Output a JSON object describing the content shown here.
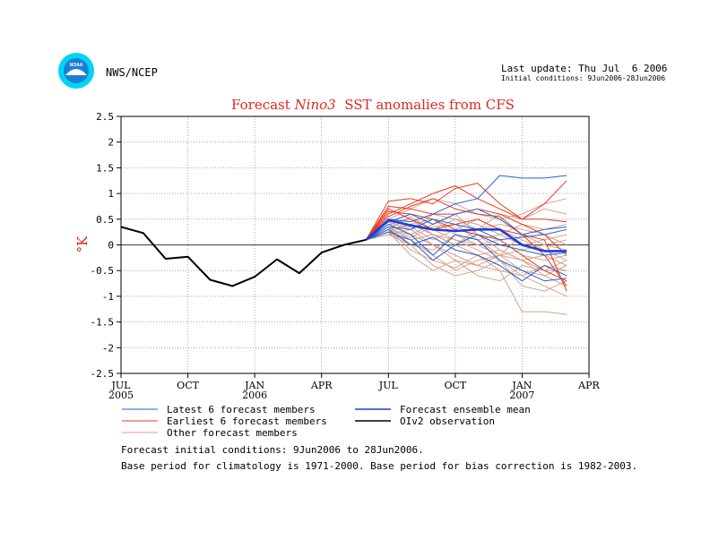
{
  "header": {
    "org": "NWS/NCEP",
    "logo_text": "NOAA",
    "last_update": "Last update: Thu Jul  6 2006",
    "initial_conditions": "Initial conditions: 9Jun2006-28Jun2006"
  },
  "footer": {
    "line1": "Forecast initial conditions: 9Jun2006 to 28Jun2006.",
    "line2": "Base period for climatology is 1971-2000. Base period for bias correction is 1982-2003."
  },
  "colors": {
    "latest": "#1f5fd8",
    "earliest": "#e8391c",
    "other": "#d9a08a",
    "mean": "#1a3fe0",
    "obs": "#000000",
    "title": "#e0281c",
    "logo": "#1a7fd6"
  },
  "chart_data": {
    "type": "line",
    "title": "Forecast Nino3  SST anomalies from CFS",
    "title_parts": [
      "Forecast ",
      "Nino3",
      "  SST anomalies from CFS"
    ],
    "ylabel": "°K",
    "ylim": [
      -2.5,
      2.5
    ],
    "yticks": [
      2.5,
      2,
      1.5,
      1,
      0.5,
      0,
      -0.5,
      -1,
      -1.5,
      -2,
      -2.5
    ],
    "ytick_labels": [
      "2.5",
      "2",
      "1.5",
      "1",
      "0.5",
      "0",
      "-0.5",
      "-1",
      "-1.5",
      "-2",
      "-2.5"
    ],
    "xlim": [
      "2005-07",
      "2007-04"
    ],
    "xticks": [
      {
        "date": "2005-07",
        "label": "JUL",
        "year": "2005"
      },
      {
        "date": "2005-10",
        "label": "OCT",
        "year": ""
      },
      {
        "date": "2006-01",
        "label": "JAN",
        "year": "2006"
      },
      {
        "date": "2006-04",
        "label": "APR",
        "year": ""
      },
      {
        "date": "2006-07",
        "label": "JUL",
        "year": ""
      },
      {
        "date": "2006-10",
        "label": "OCT",
        "year": ""
      },
      {
        "date": "2007-01",
        "label": "JAN",
        "year": "2007"
      },
      {
        "date": "2007-04",
        "label": "APR",
        "year": ""
      }
    ],
    "grid": true,
    "legend": [
      {
        "label": "Latest 6 forecast members",
        "key": "latest"
      },
      {
        "label": "Forecast ensemble mean",
        "key": "mean"
      },
      {
        "label": "Earliest 6 forecast members",
        "key": "earliest"
      },
      {
        "label": "OIv2 observation",
        "key": "obs"
      },
      {
        "label": "Other forecast members",
        "key": "other"
      }
    ],
    "observation": {
      "x": [
        "2005-07",
        "2005-08",
        "2005-09",
        "2005-10",
        "2005-11",
        "2005-12",
        "2006-01",
        "2006-02",
        "2006-03",
        "2006-04",
        "2006-05",
        "2006-06"
      ],
      "y": [
        0.35,
        0.23,
        -0.27,
        -0.23,
        -0.68,
        -0.8,
        -0.62,
        -0.28,
        -0.55,
        -0.15,
        0.0,
        0.1
      ]
    },
    "forecast_x": [
      "2006-06",
      "2006-07",
      "2006-08",
      "2006-09",
      "2006-10",
      "2006-11",
      "2006-12",
      "2007-01",
      "2007-02",
      "2007-03"
    ],
    "ensemble_mean": [
      0.1,
      0.48,
      0.38,
      0.3,
      0.27,
      0.3,
      0.3,
      0.0,
      -0.12,
      -0.12
    ],
    "latest_members": [
      [
        0.1,
        0.5,
        0.45,
        0.6,
        0.8,
        0.9,
        1.35,
        1.3,
        1.3,
        1.35
      ],
      [
        0.1,
        0.4,
        0.2,
        -0.2,
        0.2,
        0.1,
        -0.3,
        -0.5,
        -0.7,
        -0.65
      ],
      [
        0.1,
        0.35,
        0.3,
        0.5,
        0.4,
        0.3,
        0.1,
        0.15,
        0.2,
        0.3
      ],
      [
        0.1,
        0.3,
        0.0,
        0.15,
        -0.1,
        -0.2,
        -0.4,
        -0.7,
        -0.4,
        -0.6
      ],
      [
        0.1,
        0.45,
        0.6,
        0.4,
        0.6,
        0.7,
        0.5,
        0.2,
        0.3,
        0.35
      ],
      [
        0.1,
        0.25,
        0.1,
        -0.3,
        0.0,
        0.2,
        0.0,
        -0.1,
        -0.2,
        -0.15
      ]
    ],
    "earliest_members": [
      [
        0.1,
        0.85,
        0.9,
        0.8,
        1.1,
        1.2,
        0.8,
        0.5,
        0.8,
        1.25
      ],
      [
        0.1,
        0.75,
        0.7,
        0.6,
        0.6,
        0.7,
        0.6,
        0.4,
        0.2,
        -0.2
      ],
      [
        0.1,
        0.6,
        0.8,
        1.0,
        1.15,
        0.9,
        0.7,
        0.5,
        0.5,
        0.45
      ],
      [
        0.1,
        0.7,
        0.5,
        0.3,
        0.4,
        0.5,
        0.3,
        0.2,
        -0.2,
        -0.8
      ],
      [
        0.1,
        0.65,
        0.6,
        0.5,
        0.3,
        0.2,
        0.1,
        -0.2,
        -0.5,
        -0.7
      ],
      [
        0.1,
        0.55,
        0.75,
        0.9,
        0.7,
        0.6,
        0.55,
        0.2,
        0.1,
        -0.9
      ]
    ],
    "other_members": [
      [
        0.1,
        0.3,
        0.2,
        0.0,
        -0.3,
        -0.4,
        -0.5,
        -1.3,
        -1.3,
        -1.35
      ],
      [
        0.1,
        0.4,
        0.5,
        0.3,
        0.1,
        -0.1,
        -0.3,
        -0.6,
        -0.8,
        -1.0
      ],
      [
        0.1,
        0.2,
        0.1,
        -0.2,
        -0.5,
        -0.3,
        -0.2,
        -0.5,
        -0.6,
        -0.8
      ],
      [
        0.1,
        0.5,
        0.7,
        0.9,
        0.8,
        0.6,
        0.5,
        0.6,
        0.8,
        0.9
      ],
      [
        0.1,
        0.3,
        0.4,
        0.2,
        0.0,
        -0.2,
        -0.1,
        -0.3,
        -0.2,
        -0.4
      ],
      [
        0.1,
        0.25,
        -0.2,
        -0.5,
        -0.3,
        -0.6,
        -0.7,
        -0.4,
        -0.5,
        -0.3
      ],
      [
        0.1,
        0.45,
        0.3,
        0.6,
        0.5,
        0.4,
        0.2,
        0.0,
        0.1,
        0.2
      ],
      [
        0.1,
        0.35,
        0.1,
        0.2,
        0.1,
        0.0,
        -0.2,
        -0.1,
        0.0,
        0.1
      ],
      [
        0.1,
        0.3,
        0.55,
        0.3,
        0.5,
        0.3,
        0.4,
        0.3,
        0.2,
        0.0
      ],
      [
        0.1,
        0.2,
        0.0,
        -0.4,
        -0.6,
        -0.5,
        -0.3,
        -0.8,
        -0.9,
        -0.7
      ],
      [
        0.1,
        0.4,
        0.35,
        0.1,
        0.3,
        0.5,
        0.3,
        0.1,
        -0.1,
        -0.3
      ],
      [
        0.1,
        0.3,
        0.2,
        0.4,
        0.6,
        0.2,
        -0.1,
        -0.3,
        -0.5,
        -0.5
      ],
      [
        0.1,
        0.35,
        0.0,
        -0.1,
        0.2,
        0.0,
        0.1,
        -0.2,
        -0.3,
        -0.2
      ],
      [
        0.1,
        0.25,
        0.4,
        0.5,
        0.2,
        0.1,
        0.2,
        0.4,
        0.3,
        0.4
      ],
      [
        0.1,
        0.3,
        -0.1,
        -0.3,
        -0.45,
        -0.2,
        -0.5,
        -0.6,
        -0.4,
        -0.5
      ],
      [
        0.1,
        0.45,
        0.5,
        0.2,
        0.0,
        0.3,
        0.6,
        0.5,
        0.7,
        0.6
      ],
      [
        0.1,
        0.2,
        0.3,
        0.0,
        -0.2,
        -0.4,
        -0.2,
        -0.3,
        -0.6,
        -0.4
      ],
      [
        0.1,
        0.3,
        0.15,
        0.35,
        0.4,
        0.1,
        -0.2,
        0.2,
        0.0,
        -0.1
      ]
    ]
  }
}
